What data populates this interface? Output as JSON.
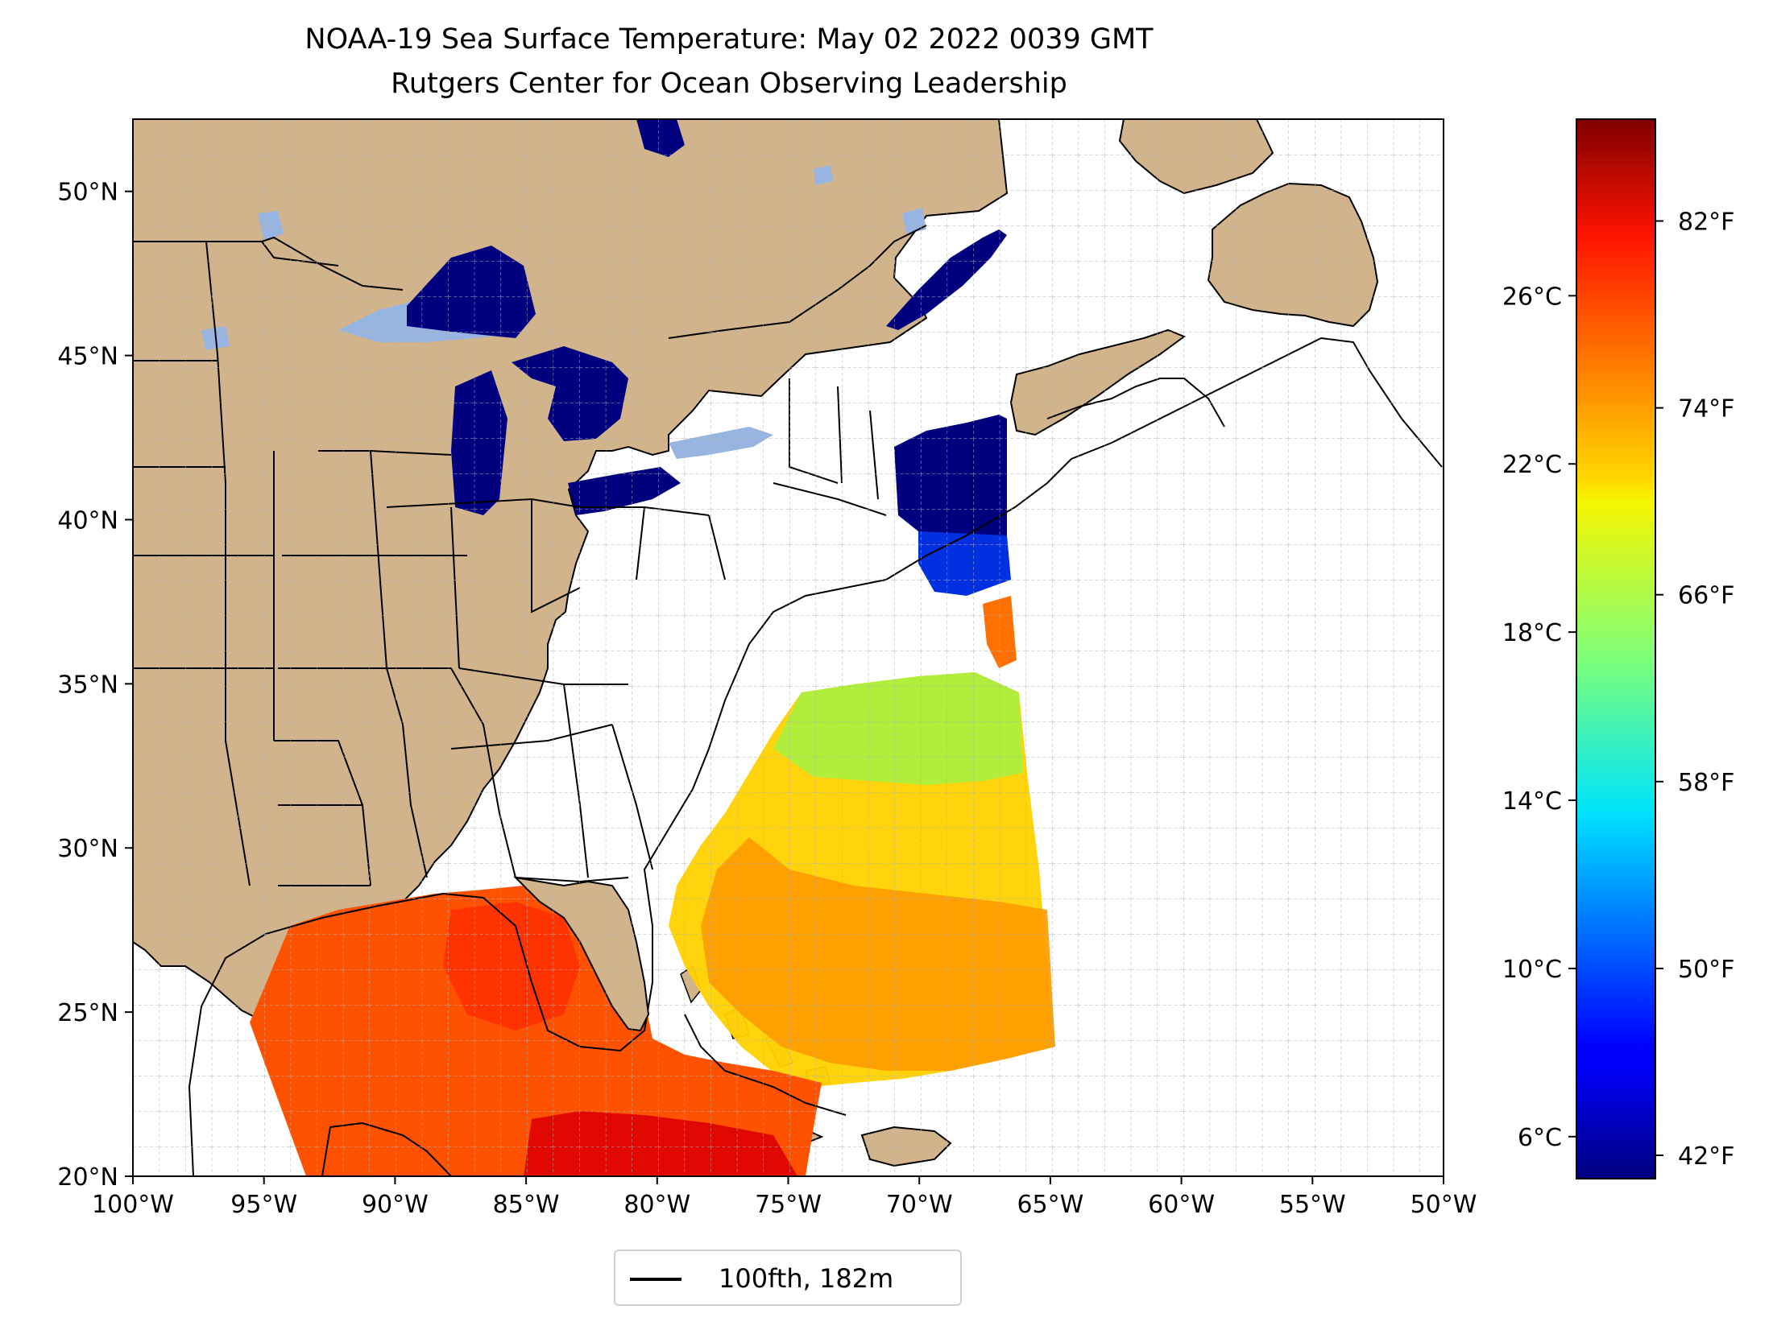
{
  "title": {
    "line1": "NOAA-19 Sea Surface Temperature: May 02 2022 0039 GMT",
    "line2": "Rutgers Center for Ocean Observing Leadership"
  },
  "map": {
    "extent": {
      "lon": [
        -100,
        -50
      ],
      "lat": [
        20,
        52.2
      ]
    },
    "lon_ticks": [
      "100°W",
      "95°W",
      "90°W",
      "85°W",
      "80°W",
      "75°W",
      "70°W",
      "65°W",
      "60°W",
      "55°W",
      "50°W"
    ],
    "lat_ticks": [
      "20°N",
      "25°N",
      "30°N",
      "35°N",
      "40°N",
      "45°N",
      "50°N"
    ],
    "land_color": "#d2b48c",
    "lake_color": "#98b4e0",
    "grid": true
  },
  "colorbar": {
    "colormap": "jet",
    "range_c": [
      5,
      30.2
    ],
    "celsius_ticks": [
      {
        "value": 6,
        "label": "6°C"
      },
      {
        "value": 10,
        "label": "10°C"
      },
      {
        "value": 14,
        "label": "14°C"
      },
      {
        "value": 18,
        "label": "18°C"
      },
      {
        "value": 22,
        "label": "22°C"
      },
      {
        "value": 26,
        "label": "26°C"
      }
    ],
    "fahrenheit_ticks": [
      {
        "value": 42,
        "label": "42°F"
      },
      {
        "value": 50,
        "label": "50°F"
      },
      {
        "value": 58,
        "label": "58°F"
      },
      {
        "value": 66,
        "label": "66°F"
      },
      {
        "value": 74,
        "label": "74°F"
      },
      {
        "value": 82,
        "label": "82°F"
      }
    ]
  },
  "legend": {
    "label": "100fth, 182m"
  }
}
